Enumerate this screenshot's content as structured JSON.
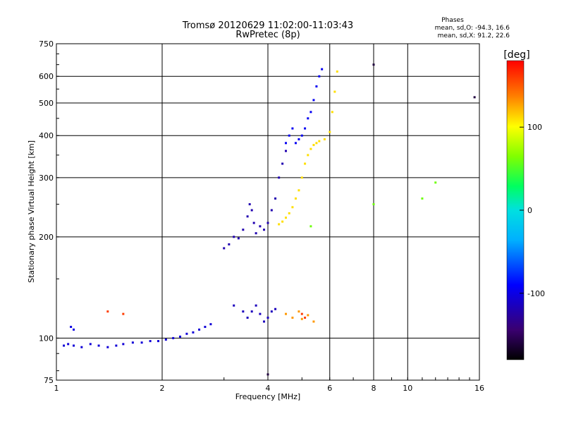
{
  "chart_data": {
    "type": "scatter",
    "title": "Tromsø 20120629 11:02:00-11:03:43",
    "subtitle": "RwPretec (8p)",
    "info": {
      "heading": "Phases",
      "line1": "mean, sd,O: -94.3, 16.6",
      "line2": "mean, sd,X:  91.2, 22.6"
    },
    "xlabel": "Frequency [MHz]",
    "ylabel": "Stationary phase Virtual Height [km]",
    "x_scale": "log",
    "y_scale": "log",
    "xlim": [
      1,
      16
    ],
    "ylim": [
      75,
      750
    ],
    "grid": true,
    "x_ticks": [
      1,
      2,
      4,
      6,
      8,
      10,
      16
    ],
    "y_ticks": [
      75,
      100,
      200,
      300,
      400,
      500,
      600,
      750
    ],
    "colorbar": {
      "label": "[deg]",
      "range": [
        -180,
        180
      ],
      "ticks": [
        100,
        0,
        -100
      ]
    },
    "series": [
      {
        "phase": -105,
        "x": [
          1.05,
          1.08,
          1.12,
          1.18,
          1.25,
          1.32,
          1.4,
          1.48,
          1.55,
          1.65,
          1.75,
          1.85,
          1.95,
          2.05,
          2.15,
          2.25,
          2.35,
          2.45,
          2.55,
          2.65,
          2.75
        ],
        "y": [
          95,
          96,
          95,
          94,
          96,
          95,
          94,
          95,
          96,
          97,
          97,
          98,
          98,
          99,
          100,
          101,
          103,
          104,
          106,
          108,
          110
        ]
      },
      {
        "phase": -100,
        "x": [
          1.1,
          1.12
        ],
        "y": [
          108,
          106
        ]
      },
      {
        "phase": -120,
        "x": [
          3.0,
          3.1,
          3.2,
          3.3,
          3.4,
          3.5,
          3.55,
          3.6,
          3.65,
          3.7,
          3.8,
          3.9,
          4.0,
          4.1,
          4.2,
          4.3,
          4.4,
          4.5
        ],
        "y": [
          185,
          190,
          200,
          198,
          210,
          230,
          250,
          240,
          220,
          205,
          215,
          210,
          220,
          240,
          260,
          300,
          330,
          360
        ]
      },
      {
        "phase": -95,
        "x": [
          4.5,
          4.6,
          4.7,
          4.8,
          4.9,
          5.0,
          5.1,
          5.2,
          5.3,
          5.4,
          5.5,
          5.6,
          5.7
        ],
        "y": [
          380,
          400,
          420,
          380,
          390,
          400,
          420,
          450,
          470,
          510,
          560,
          600,
          630
        ]
      },
      {
        "phase": -115,
        "x": [
          3.2,
          3.4,
          3.5,
          3.6,
          3.7,
          3.8,
          3.9,
          4.0,
          4.1,
          4.2
        ],
        "y": [
          125,
          120,
          115,
          120,
          125,
          118,
          112,
          115,
          120,
          122
        ]
      },
      {
        "phase": 110,
        "x": [
          4.3,
          4.4,
          4.5,
          4.6,
          4.7,
          4.8,
          4.9,
          5.0,
          5.1,
          5.2,
          5.3,
          5.4,
          5.5,
          5.6,
          5.8,
          6.0,
          6.1,
          6.2,
          6.3
        ],
        "y": [
          218,
          222,
          228,
          235,
          245,
          260,
          275,
          300,
          330,
          350,
          365,
          375,
          380,
          385,
          390,
          410,
          470,
          540,
          620
        ]
      },
      {
        "phase": 130,
        "x": [
          4.5,
          4.7,
          4.9,
          5.0,
          5.2,
          5.4
        ],
        "y": [
          118,
          115,
          120,
          114,
          117,
          112
        ]
      },
      {
        "phase": 160,
        "x": [
          1.4,
          1.55,
          5.0,
          5.1
        ],
        "y": [
          120,
          118,
          118,
          115
        ]
      },
      {
        "phase": 60,
        "x": [
          5.3,
          8.0,
          11.0,
          12.0
        ],
        "y": [
          215,
          250,
          260,
          290
        ]
      },
      {
        "phase": -160,
        "x": [
          4.0,
          8.0,
          15.5
        ],
        "y": [
          78,
          650,
          520
        ]
      }
    ]
  }
}
